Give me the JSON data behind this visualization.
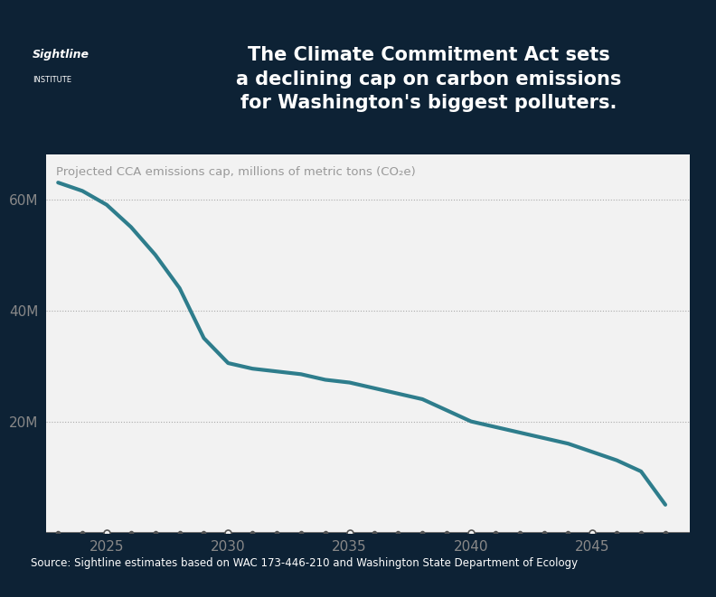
{
  "bg_color": "#0d2235",
  "chart_bg": "#f2f2f2",
  "title_text": "The Climate Commitment Act sets\na declining cap on carbon emissions\nfor Washington's biggest polluters.",
  "title_color": "#ffffff",
  "subtitle": "Projected CCA emissions cap, millions of metric tons (CO₂e)",
  "subtitle_color": "#999999",
  "source_text": "Source: Sightline estimates based on WAC 173-446-210 and Washington State Department of Ecology",
  "source_color": "#ffffff",
  "line_color": "#2e7d8c",
  "line_width": 3.0,
  "x_data": [
    2023,
    2024,
    2025,
    2026,
    2027,
    2028,
    2029,
    2030,
    2031,
    2032,
    2033,
    2034,
    2035,
    2036,
    2037,
    2038,
    2039,
    2040,
    2041,
    2042,
    2043,
    2044,
    2045,
    2046,
    2047,
    2048
  ],
  "y_data": [
    63,
    61.5,
    59,
    55,
    50,
    44,
    35,
    30.5,
    29.5,
    29,
    28.5,
    27.5,
    27,
    26,
    25,
    24,
    22,
    20,
    19,
    18,
    17,
    16,
    14.5,
    13,
    11,
    5
  ],
  "yticks": [
    20,
    40,
    60
  ],
  "ytick_labels": [
    "20M",
    "40M",
    "60M"
  ],
  "xticks": [
    2025,
    2030,
    2035,
    2040,
    2045
  ],
  "ylim": [
    0,
    68
  ],
  "xlim": [
    2022.5,
    2049
  ],
  "grid_color": "#aaaaaa",
  "tick_color": "#888888",
  "timeline_marker_color": "#555555",
  "timeline_open_years": [
    2025,
    2030,
    2035,
    2040,
    2045
  ],
  "sightline_text": "Sightline",
  "institute_text": "INSTITUTE"
}
